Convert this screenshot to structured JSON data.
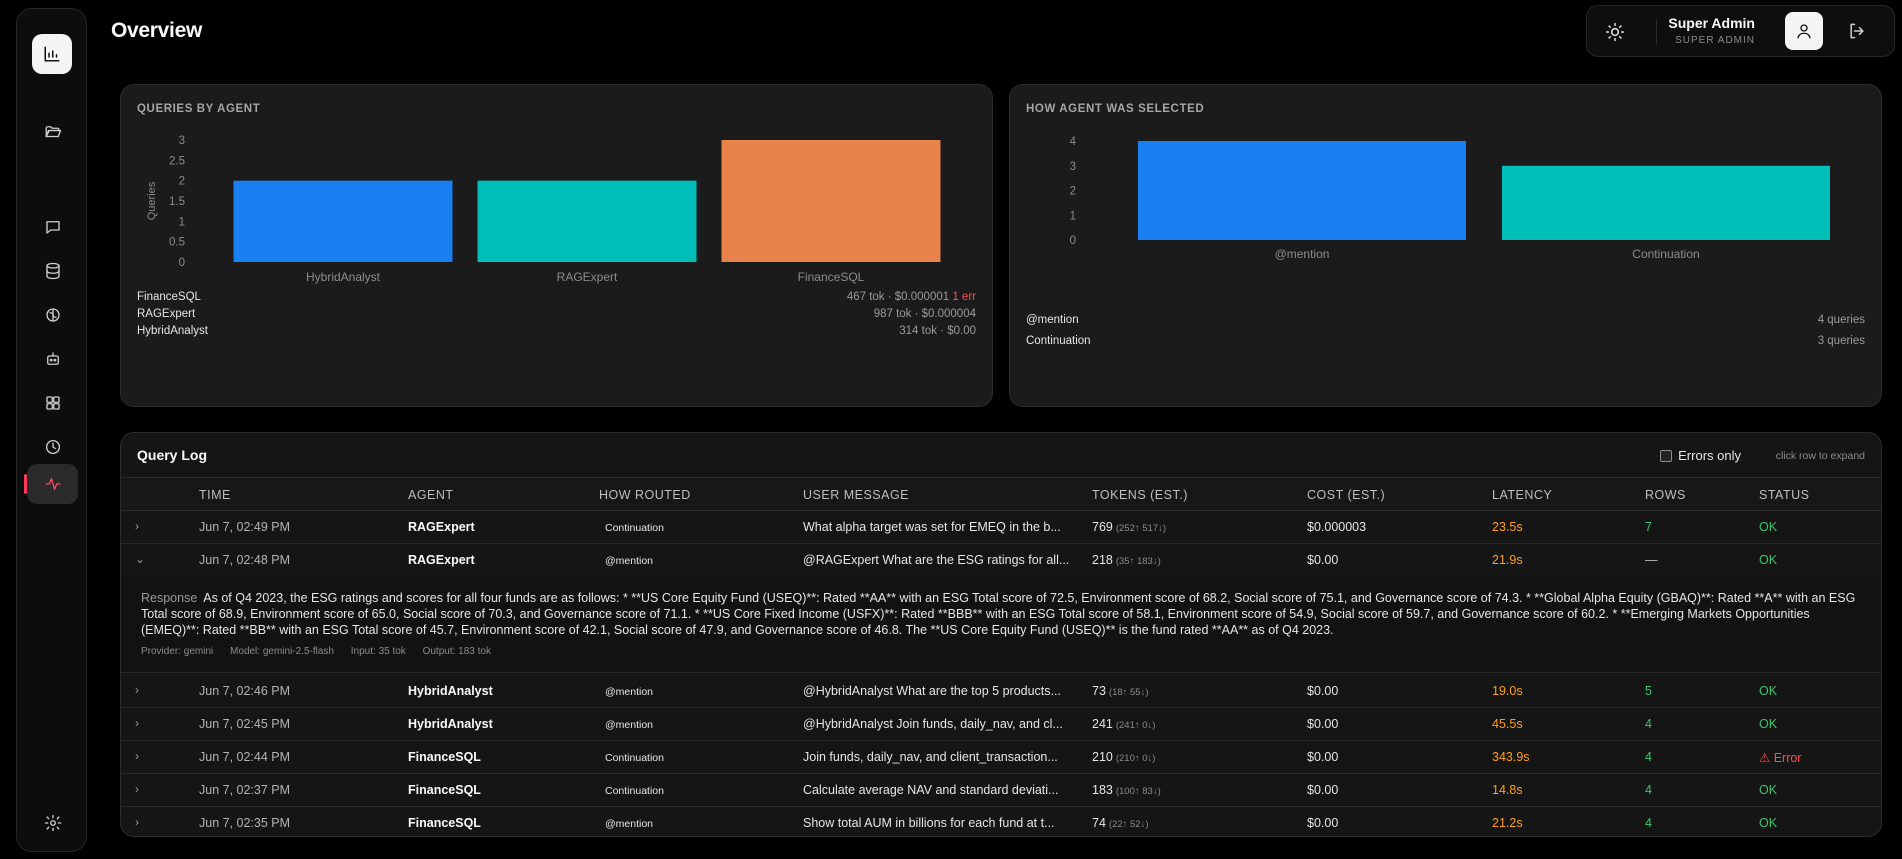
{
  "page": {
    "title": "Overview"
  },
  "sidebar": {
    "items": [
      {
        "name": "bar-chart-icon"
      },
      {
        "name": "folder-open-icon"
      },
      {
        "name": "chat-icon"
      },
      {
        "name": "database-icon"
      },
      {
        "name": "brain-icon"
      },
      {
        "name": "bot-icon"
      },
      {
        "name": "dashboard-icon"
      },
      {
        "name": "clock-icon"
      },
      {
        "name": "activity-icon",
        "active": true
      },
      {
        "name": "settings-icon"
      }
    ]
  },
  "user": {
    "name": "Super Admin",
    "role": "SUPER ADMIN"
  },
  "colors": {
    "blue": "#1a7ff0",
    "teal": "#00bfb8",
    "orange": "#e8834b",
    "ok": "#3ec46d",
    "error": "#ff4d4d",
    "latency": "#ff9f1c"
  },
  "queries_by_agent": {
    "title": "QUERIES BY AGENT",
    "legend": [
      {
        "name": "FinanceSQL",
        "meta": "467 tok · $0.000001",
        "err": "1 err"
      },
      {
        "name": "RAGExpert",
        "meta": "987 tok · $0.000004",
        "err": ""
      },
      {
        "name": "HybridAnalyst",
        "meta": "314 tok · $0.00",
        "err": ""
      }
    ]
  },
  "how_selected": {
    "title": "HOW AGENT WAS SELECTED",
    "legend": [
      {
        "name": "@mention",
        "meta": "4 queries"
      },
      {
        "name": "Continuation",
        "meta": "3 queries"
      }
    ]
  },
  "chart_data": [
    {
      "type": "bar",
      "title": "QUERIES BY AGENT",
      "categories": [
        "HybridAnalyst",
        "RAGExpert",
        "FinanceSQL"
      ],
      "values": [
        2,
        2,
        3
      ],
      "colors": [
        "#1a7ff0",
        "#00bfb8",
        "#e8834b"
      ],
      "ylabel": "Queries",
      "xlabel": "",
      "yticks": [
        "0",
        "0.5",
        "1",
        "1.5",
        "2",
        "2.5",
        "3"
      ],
      "ylim": [
        0,
        3
      ],
      "grid": false,
      "legend": "none"
    },
    {
      "type": "bar",
      "title": "HOW AGENT WAS SELECTED",
      "categories": [
        "@mention",
        "Continuation"
      ],
      "values": [
        4,
        3
      ],
      "colors": [
        "#1a7ff0",
        "#00bfb8"
      ],
      "ylabel": "",
      "xlabel": "",
      "yticks": [
        "0",
        "1",
        "2",
        "3",
        "4"
      ],
      "ylim": [
        0,
        4
      ],
      "grid": false,
      "legend": "none"
    }
  ],
  "log": {
    "title": "Query Log",
    "errors_only_label": "Errors only",
    "hint": "click row to expand",
    "columns": [
      "TIME",
      "AGENT",
      "HOW ROUTED",
      "USER MESSAGE",
      "TOKENS (EST.)",
      "COST (EST.)",
      "LATENCY",
      "ROWS",
      "STATUS"
    ],
    "rows": [
      {
        "time": "Jun 7, 02:49 PM",
        "agent": "RAGExpert",
        "routed": "Continuation",
        "msg": "What alpha target was set for EMEQ in the b...",
        "tok": "769",
        "tok_sub": "(252↑ 517↓)",
        "cost": "$0.000003",
        "lat": "23.5s",
        "rows": "7",
        "status": "OK",
        "chev": "›"
      },
      {
        "time": "Jun 7, 02:48 PM",
        "agent": "RAGExpert",
        "routed": "@mention",
        "msg": "@RAGExpert What are the ESG ratings for all...",
        "tok": "218",
        "tok_sub": "(35↑ 183↓)",
        "cost": "$0.00",
        "lat": "21.9s",
        "rows": "—",
        "status": "OK",
        "chev": "⌄"
      },
      {
        "time": "Jun 7, 02:46 PM",
        "agent": "HybridAnalyst",
        "routed": "@mention",
        "msg": "@HybridAnalyst What are the top 5 products...",
        "tok": "73",
        "tok_sub": "(18↑ 55↓)",
        "cost": "$0.00",
        "lat": "19.0s",
        "rows": "5",
        "status": "OK",
        "chev": "›"
      },
      {
        "time": "Jun 7, 02:45 PM",
        "agent": "HybridAnalyst",
        "routed": "@mention",
        "msg": "@HybridAnalyst Join funds, daily_nav, and cl...",
        "tok": "241",
        "tok_sub": "(241↑ 0↓)",
        "cost": "$0.00",
        "lat": "45.5s",
        "rows": "4",
        "status": "OK",
        "chev": "›"
      },
      {
        "time": "Jun 7, 02:44 PM",
        "agent": "FinanceSQL",
        "routed": "Continuation",
        "msg": "Join funds, daily_nav, and client_transaction...",
        "tok": "210",
        "tok_sub": "(210↑ 0↓)",
        "cost": "$0.00",
        "lat": "343.9s",
        "rows": "4",
        "status": "Error",
        "chev": "›"
      },
      {
        "time": "Jun 7, 02:37 PM",
        "agent": "FinanceSQL",
        "routed": "Continuation",
        "msg": "Calculate average NAV and standard deviati...",
        "tok": "183",
        "tok_sub": "(100↑ 83↓)",
        "cost": "$0.00",
        "lat": "14.8s",
        "rows": "4",
        "status": "OK",
        "chev": "›"
      },
      {
        "time": "Jun 7, 02:35 PM",
        "agent": "FinanceSQL",
        "routed": "@mention",
        "msg": "Show total AUM in billions for each fund at t...",
        "tok": "74",
        "tok_sub": "(22↑ 52↓)",
        "cost": "$0.00",
        "lat": "21.2s",
        "rows": "4",
        "status": "OK",
        "chev": "›"
      }
    ],
    "expanded": {
      "label": "Response",
      "text": "As of Q4 2023, the ESG ratings and scores for all four funds are as follows: * **US Core Equity Fund (USEQ)**: Rated **AA** with an ESG Total score of 72.5, Environment score of 68.2, Social score of 75.1, and Governance score of 74.3. * **Global Alpha Equity (GBAQ)**: Rated **A** with an ESG Total score of 68.9, Environment score of 65.0, Social score of 70.3, and Governance score of 71.1. * **US Core Fixed Income (USFX)**: Rated **BBB** with an ESG Total score of 58.1, Environment score of 54.9, Social score of 59.7, and Governance score of 60.2. * **Emerging Markets Opportunities (EMEQ)**: Rated **BB** with an ESG Total score of 45.7, Environment score of 42.1, Social score of 47.9, and Governance score of 46.8. The **US Core Equity Fund (USEQ)** is the fund rated **AA** as of Q4 2023.",
      "provider": "Provider: gemini",
      "model": "Model: gemini-2.5-flash",
      "input": "Input: 35 tok",
      "output": "Output: 183 tok"
    }
  }
}
